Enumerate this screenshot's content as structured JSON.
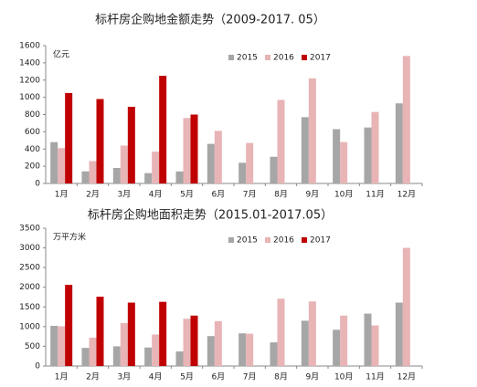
{
  "chart_data": [
    {
      "type": "bar",
      "title": "标杆房企购地金额走势（2009-2017. 05）",
      "y_label": "亿元",
      "categories": [
        "1月",
        "2月",
        "3月",
        "4月",
        "5月",
        "6月",
        "7月",
        "8月",
        "9月",
        "10月",
        "11月",
        "12月"
      ],
      "series": [
        {
          "name": "2015",
          "color": "#a6a6a6",
          "values": [
            480,
            140,
            180,
            120,
            140,
            460,
            240,
            310,
            770,
            630,
            650,
            930
          ]
        },
        {
          "name": "2016",
          "color": "#e8b4b6",
          "values": [
            410,
            260,
            440,
            370,
            760,
            610,
            470,
            970,
            1220,
            480,
            830,
            1480
          ]
        },
        {
          "name": "2017",
          "color": "#c00000",
          "values": [
            1050,
            980,
            890,
            1250,
            800,
            null,
            null,
            null,
            null,
            null,
            null,
            null
          ]
        }
      ],
      "ylim": [
        0,
        1600
      ],
      "yticks": [
        0,
        200,
        400,
        600,
        800,
        1000,
        1200,
        1400,
        1600
      ],
      "grid": false
    },
    {
      "type": "bar",
      "title": "标杆房企购地面积走势（2015.01-2017.05）",
      "y_label": "万平方米",
      "categories": [
        "1月",
        "2月",
        "3月",
        "4月",
        "5月",
        "6月",
        "7月",
        "8月",
        "9月",
        "10月",
        "11月",
        "12月"
      ],
      "series": [
        {
          "name": "2015",
          "color": "#a6a6a6",
          "values": [
            1020,
            460,
            500,
            470,
            370,
            760,
            830,
            600,
            1150,
            920,
            1330,
            1610
          ]
        },
        {
          "name": "2016",
          "color": "#e8b4b6",
          "values": [
            1010,
            720,
            1090,
            800,
            1200,
            1140,
            820,
            1710,
            1640,
            1280,
            1030,
            3000
          ]
        },
        {
          "name": "2017",
          "color": "#c00000",
          "values": [
            2060,
            1760,
            1610,
            1630,
            1280,
            null,
            null,
            null,
            null,
            null,
            null,
            null
          ]
        }
      ],
      "ylim": [
        0,
        3500
      ],
      "yticks": [
        0,
        500,
        1000,
        1500,
        2000,
        2500,
        3000,
        3500
      ],
      "grid": false
    }
  ]
}
